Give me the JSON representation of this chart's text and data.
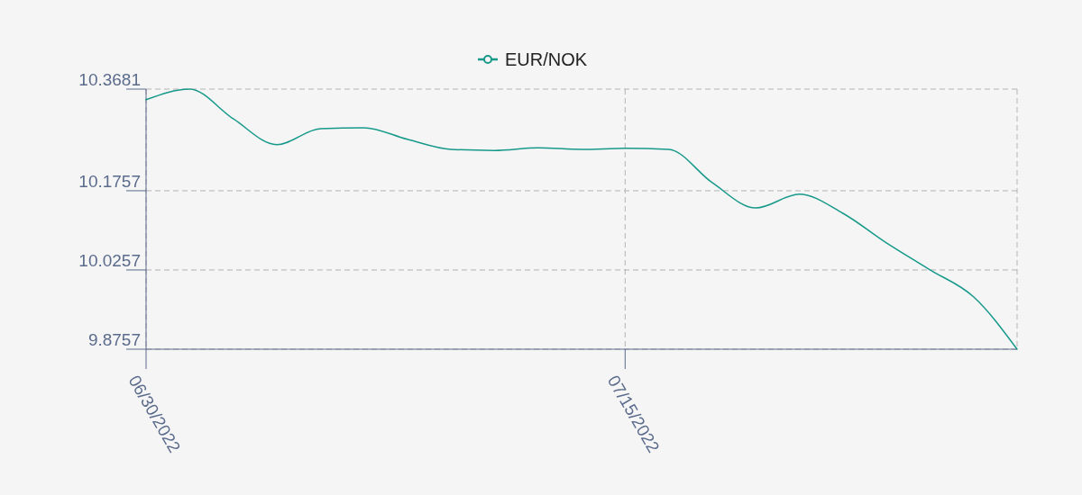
{
  "chart_data": {
    "type": "line",
    "categories": [
      "06/30/2022",
      null,
      null,
      null,
      null,
      null,
      null,
      null,
      null,
      null,
      null,
      "07/15/2022",
      null,
      null,
      null,
      null,
      null,
      null,
      null,
      null,
      null
    ],
    "series": [
      {
        "name": "EUR/NOK",
        "color": "#17998a",
        "values": [
          10.348,
          10.368,
          10.312,
          10.263,
          10.293,
          10.295,
          10.273,
          10.254,
          10.252,
          10.257,
          10.254,
          10.256,
          10.254,
          10.191,
          10.143,
          10.169,
          10.133,
          10.077,
          10.026,
          9.975,
          9.8757
        ]
      }
    ],
    "ylim": [
      9.8757,
      10.3681
    ],
    "yticks": [
      9.8757,
      10.0257,
      10.1757,
      10.3681
    ],
    "grid": true,
    "legend": "top",
    "marker": "none",
    "line_style": "solid"
  }
}
